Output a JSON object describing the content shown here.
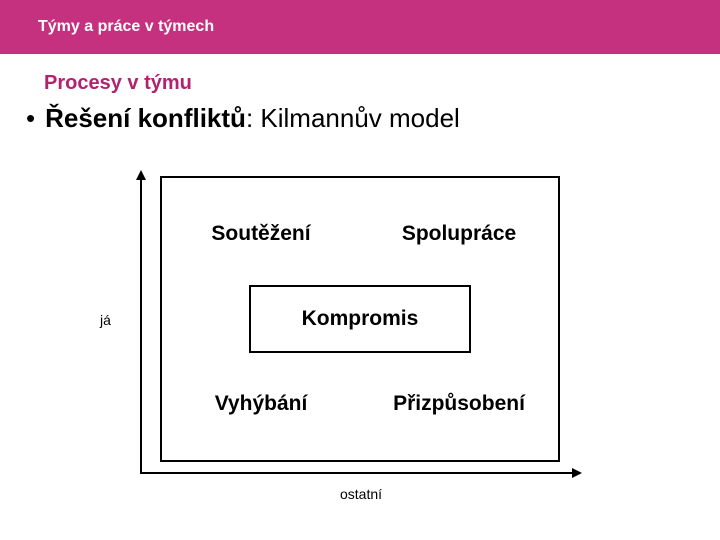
{
  "header": {
    "title": "Týmy a práce v týmech",
    "bg_color": "#c6317f"
  },
  "subtitle": {
    "text": "Procesy v týmu",
    "color": "#b12270"
  },
  "bullet": {
    "bold": "Řešení konfliktů",
    "rest": ": Kilmannův model"
  },
  "diagram": {
    "type": "quadrant",
    "axis_y_label": "já",
    "axis_x_label": "ostatní",
    "quadrants": {
      "top_left": "Soutěžení",
      "top_right": "Spolupráce",
      "center": "Kompromis",
      "bottom_left": "Vyhýbání",
      "bottom_right": "Přizpůsobení"
    },
    "border_color": "#000000",
    "background_color": "#ffffff",
    "label_fontsize": 21,
    "axis_label_fontsize": 14
  }
}
